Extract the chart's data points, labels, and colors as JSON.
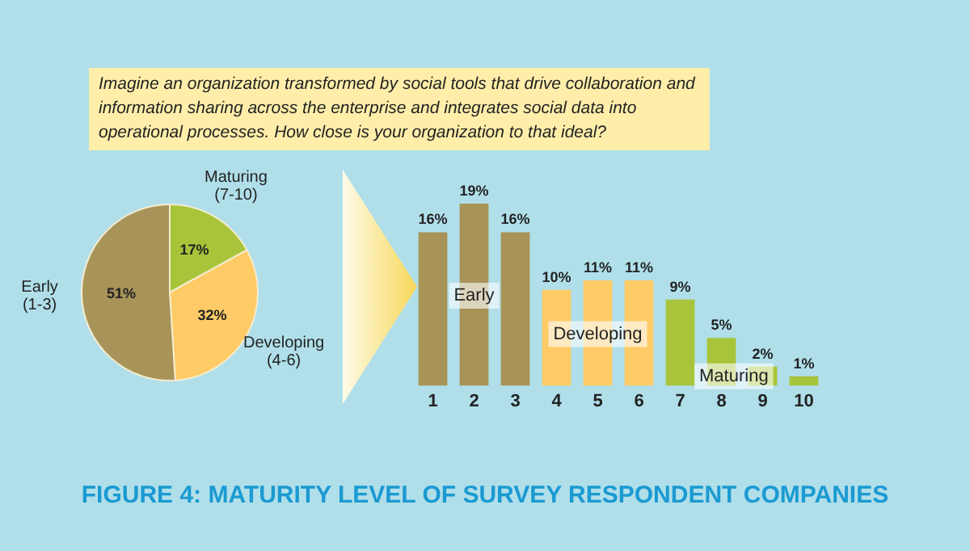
{
  "chart_data": [
    {
      "type": "pie",
      "title": "Imagine an organization transformed by social tools that drive collaboration and information sharing across the enterprise and integrates social data into operational processes. How close is your organization to that ideal?",
      "categories": [
        "Maturing\n(7-10)",
        "Developing\n(4-6)",
        "Early\n(1-3)"
      ],
      "values": [
        17,
        32,
        51
      ],
      "colors": [
        "#a8c43a",
        "#fecb66",
        "#a89458"
      ],
      "value_labels": [
        "17%",
        "32%",
        "51%"
      ],
      "legend": false
    },
    {
      "type": "bar",
      "categories": [
        "1",
        "2",
        "3",
        "4",
        "5",
        "6",
        "7",
        "8",
        "9",
        "10"
      ],
      "values": [
        16,
        19,
        16,
        10,
        11,
        11,
        9,
        5,
        2,
        1
      ],
      "colors": [
        "#a89458",
        "#a89458",
        "#a89458",
        "#fecb66",
        "#fecb66",
        "#fecb66",
        "#a8c43a",
        "#a8c43a",
        "#a8c43a",
        "#a8c43a"
      ],
      "value_labels": [
        "16%",
        "19%",
        "16%",
        "10%",
        "11%",
        "11%",
        "9%",
        "5%",
        "2%",
        "1%"
      ],
      "tick_labels": "x",
      "grid": false,
      "legend": false,
      "annotations": [
        "Early",
        "Developing",
        "Maturing",
        "FIGURE 4: MATURITY LEVEL OF SURVEY RESPONDENT COMPANIES"
      ]
    }
  ]
}
